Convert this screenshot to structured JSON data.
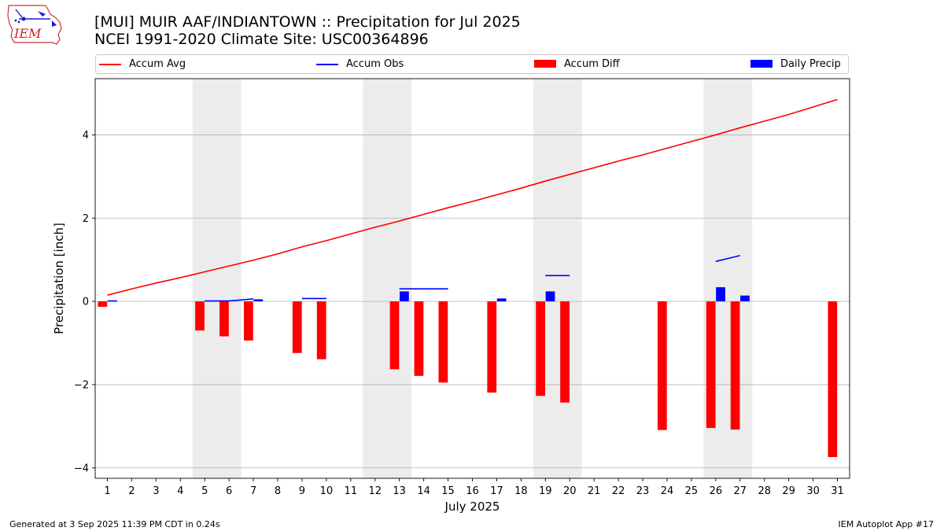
{
  "header": {
    "title_line1": "[MUI] MUIR AAF/INDIANTOWN :: Precipitation for Jul 2025",
    "title_line2": "NCEI 1991-2020 Climate Site: USC00364896"
  },
  "logo": {
    "text": "IEM"
  },
  "footer": {
    "left": "Generated at 3 Sep 2025 11:39 PM CDT in 0.24s",
    "right": "IEM Autoplot App #17"
  },
  "colors": {
    "accum_avg": "#ff0000",
    "accum_obs": "#0000ff",
    "accum_diff": "#ff0000",
    "daily_precip": "#0000ff",
    "weekend_band": "#ececec",
    "grid": "#b0b0b0"
  },
  "chart_data": {
    "type": "bar",
    "xlabel": "July 2025",
    "ylabel": "Precipitation [inch]",
    "xlim": [
      0.5,
      31.5
    ],
    "ylim": [
      -4.25,
      5.35
    ],
    "yticks": [
      -4,
      -2,
      0,
      2,
      4
    ],
    "grid": "horizontal",
    "legend_position": "top",
    "x": [
      1,
      2,
      3,
      4,
      5,
      6,
      7,
      8,
      9,
      10,
      11,
      12,
      13,
      14,
      15,
      16,
      17,
      18,
      19,
      20,
      21,
      22,
      23,
      24,
      25,
      26,
      27,
      28,
      29,
      30,
      31
    ],
    "x_tick_labels": [
      "1",
      "2",
      "3",
      "4",
      "5",
      "6",
      "7",
      "8",
      "9",
      "10",
      "11",
      "12",
      "13",
      "14",
      "15",
      "16",
      "17",
      "18",
      "19",
      "20",
      "21",
      "22",
      "23",
      "24",
      "25",
      "26",
      "27",
      "28",
      "29",
      "30",
      "31"
    ],
    "shaded_day_ranges": [
      [
        4.5,
        6.5
      ],
      [
        11.5,
        13.5
      ],
      [
        18.5,
        20.5
      ],
      [
        25.5,
        27.5
      ]
    ],
    "series": [
      {
        "name": "Accum Avg",
        "kind": "line",
        "values": [
          0.15,
          0.3,
          0.44,
          0.57,
          0.71,
          0.85,
          0.99,
          1.14,
          1.31,
          1.46,
          1.62,
          1.78,
          1.93,
          2.09,
          2.25,
          2.4,
          2.56,
          2.72,
          2.89,
          3.05,
          3.21,
          3.37,
          3.52,
          3.68,
          3.84,
          4.0,
          4.17,
          4.33,
          4.49,
          4.67,
          4.85
        ]
      },
      {
        "name": "Accum Obs",
        "kind": "segments",
        "segments": [
          {
            "x": [
              1,
              1.4
            ],
            "y": [
              0.01,
              0.01
            ]
          },
          {
            "x": [
              5,
              6
            ],
            "y": [
              0.01,
              0.01
            ]
          },
          {
            "x": [
              6,
              7
            ],
            "y": [
              0.01,
              0.06
            ]
          },
          {
            "x": [
              9,
              10
            ],
            "y": [
              0.07,
              0.07
            ]
          },
          {
            "x": [
              13,
              15
            ],
            "y": [
              0.3,
              0.3
            ]
          },
          {
            "x": [
              19,
              20
            ],
            "y": [
              0.62,
              0.62
            ]
          },
          {
            "x": [
              26,
              27
            ],
            "y": [
              0.96,
              1.1
            ]
          }
        ]
      },
      {
        "name": "Accum Diff",
        "kind": "bar",
        "offset": -0.2,
        "width": 0.38,
        "values": [
          -0.13,
          null,
          null,
          null,
          -0.7,
          -0.84,
          -0.94,
          null,
          -1.24,
          -1.39,
          null,
          null,
          -1.63,
          -1.79,
          -1.95,
          null,
          -2.19,
          null,
          -2.27,
          -2.43,
          null,
          null,
          null,
          -3.09,
          null,
          -3.04,
          -3.08,
          null,
          null,
          null,
          -3.74
        ]
      },
      {
        "name": "Daily Precip",
        "kind": "bar",
        "offset": 0.2,
        "width": 0.38,
        "values": [
          0.01,
          null,
          null,
          null,
          null,
          null,
          0.05,
          null,
          null,
          null,
          null,
          null,
          0.24,
          null,
          null,
          null,
          0.07,
          null,
          0.24,
          null,
          null,
          null,
          null,
          null,
          null,
          0.34,
          0.14,
          null,
          null,
          null,
          null
        ]
      }
    ]
  }
}
